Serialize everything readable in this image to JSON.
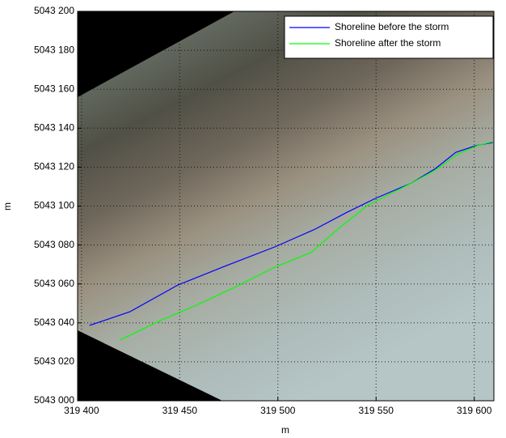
{
  "chart_data": {
    "type": "line",
    "xlabel": "m",
    "ylabel": "m",
    "xlim": [
      319398,
      319610
    ],
    "ylim": [
      5043000,
      5043200
    ],
    "xticks": [
      {
        "value": 319400,
        "label": "319 400"
      },
      {
        "value": 319450,
        "label": "319 450"
      },
      {
        "value": 319500,
        "label": "319 500"
      },
      {
        "value": 319550,
        "label": "319 550"
      },
      {
        "value": 319600,
        "label": "319 600"
      }
    ],
    "yticks": [
      {
        "value": 5043000,
        "label": "5043 000"
      },
      {
        "value": 5043020,
        "label": "5043 020"
      },
      {
        "value": 5043040,
        "label": "5043 040"
      },
      {
        "value": 5043060,
        "label": "5043 060"
      },
      {
        "value": 5043080,
        "label": "5043 080"
      },
      {
        "value": 5043100,
        "label": "5043 100"
      },
      {
        "value": 5043120,
        "label": "5043 120"
      },
      {
        "value": 5043140,
        "label": "5043 140"
      },
      {
        "value": 5043160,
        "label": "5043 160"
      },
      {
        "value": 5043180,
        "label": "5043 180"
      },
      {
        "value": 5043200,
        "label": "5043 200"
      }
    ],
    "grid": true,
    "legend": "upper right",
    "series": [
      {
        "name": "Shoreline before the storm",
        "color": "#0000ff",
        "x": [
          319404.1,
          319424.6,
          319449.2,
          319473.8,
          319498.4,
          319518.9,
          319535.2,
          319549.6,
          319568.0,
          319580.3,
          319590.6,
          319600.8,
          319609.4
        ],
        "values": [
          5043038.7,
          5043045.7,
          5043059.5,
          5043069.4,
          5043079.0,
          5043088.1,
          5043096.8,
          5043103.9,
          5043111.8,
          5043119.3,
          5043127.6,
          5043131.0,
          5043132.6
        ]
      },
      {
        "name": "Shoreline after the storm",
        "color": "#00ff00",
        "x": [
          319419.7,
          319441.0,
          319457.4,
          319477.9,
          319498.4,
          319516.8,
          319531.1,
          319545.5,
          319568.0,
          319580.3,
          319591.8,
          319601.6,
          319609.4
        ],
        "values": [
          5043031.2,
          5043041.6,
          5043048.6,
          5043058.2,
          5043068.6,
          5043076.1,
          5043088.6,
          5043100.2,
          5043111.8,
          5043118.5,
          5043126.8,
          5043131.0,
          5043133.1
        ]
      }
    ]
  }
}
